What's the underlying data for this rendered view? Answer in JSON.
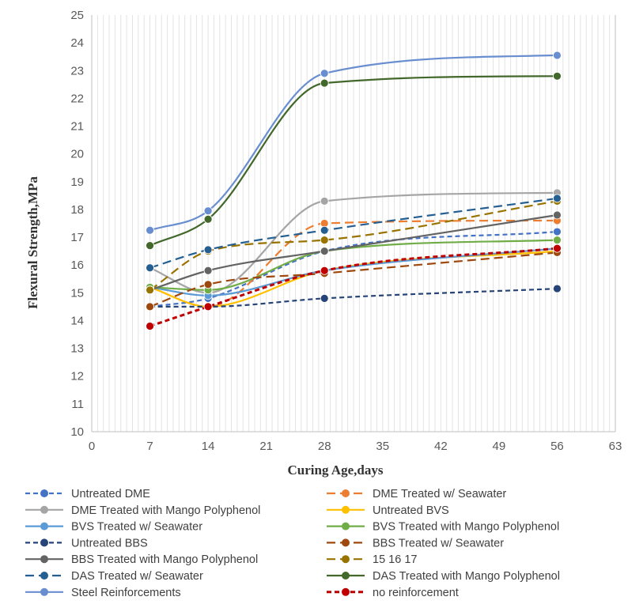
{
  "chart_data": {
    "type": "line",
    "title": "",
    "xlabel": "Curing Age,days",
    "ylabel": "Flexural Strength,MPa",
    "xlim": [
      0,
      63
    ],
    "ylim": [
      10,
      25
    ],
    "x_ticks": [
      0,
      7,
      14,
      21,
      28,
      35,
      42,
      49,
      56,
      63
    ],
    "y_ticks": [
      10,
      11,
      12,
      13,
      14,
      15,
      16,
      17,
      18,
      19,
      20,
      21,
      22,
      23,
      24,
      25
    ],
    "grid": "vertical-minor",
    "legend_position": "bottom",
    "x": [
      7,
      14,
      28,
      56
    ],
    "series": [
      {
        "name": "Untreated DME",
        "values": [
          14.5,
          14.8,
          16.5,
          17.2
        ],
        "color": "#4472C4",
        "dash": "dash"
      },
      {
        "name": "DME Treated w/ Seawater",
        "values": [
          15.2,
          14.5,
          17.5,
          17.6
        ],
        "color": "#ED7D31",
        "dash": "longdash"
      },
      {
        "name": "DME Treated with Mango Polyphenol",
        "values": [
          15.9,
          15.0,
          18.3,
          18.6
        ],
        "color": "#A5A5A5",
        "dash": "solid"
      },
      {
        "name": "Untreated BVS",
        "values": [
          15.2,
          14.5,
          15.8,
          16.5
        ],
        "color": "#FFC000",
        "dash": "solid"
      },
      {
        "name": "BVS Treated w/ Seawater",
        "values": [
          15.2,
          14.9,
          15.8,
          16.6
        ],
        "color": "#5B9BD5",
        "dash": "solid"
      },
      {
        "name": "BVS Treated with Mango Polyphenol",
        "values": [
          15.2,
          15.1,
          16.5,
          16.9
        ],
        "color": "#70AD47",
        "dash": "solid"
      },
      {
        "name": "Untreated BBS",
        "values": [
          14.5,
          14.5,
          14.8,
          15.15
        ],
        "color": "#264478",
        "dash": "dash"
      },
      {
        "name": "BBS Treated w/ Seawater",
        "values": [
          14.5,
          15.3,
          15.7,
          16.45
        ],
        "color": "#9E480E",
        "dash": "longdash"
      },
      {
        "name": "BBS Treated with Mango Polyphenol",
        "values": [
          15.1,
          15.8,
          16.5,
          17.8
        ],
        "color": "#636363",
        "dash": "solid"
      },
      {
        "name": "15 16 17",
        "values": [
          15.1,
          16.5,
          16.9,
          18.3
        ],
        "color": "#997300",
        "dash": "longdash"
      },
      {
        "name": "DAS Treated w/ Seawater",
        "values": [
          15.9,
          16.55,
          17.25,
          18.4
        ],
        "color": "#255E91",
        "dash": "longdash"
      },
      {
        "name": "DAS Treated with Mango Polyphenol",
        "values": [
          16.7,
          17.65,
          22.55,
          22.8
        ],
        "color": "#43682B",
        "dash": "solid"
      },
      {
        "name": "Steel Reinforcements",
        "values": [
          17.25,
          17.95,
          22.9,
          23.55
        ],
        "color": "#698ED0",
        "dash": "solid"
      },
      {
        "name": "no reinforcement",
        "values": [
          13.8,
          14.5,
          15.8,
          16.6
        ],
        "color": "#C00000",
        "dash": "dash"
      }
    ]
  }
}
